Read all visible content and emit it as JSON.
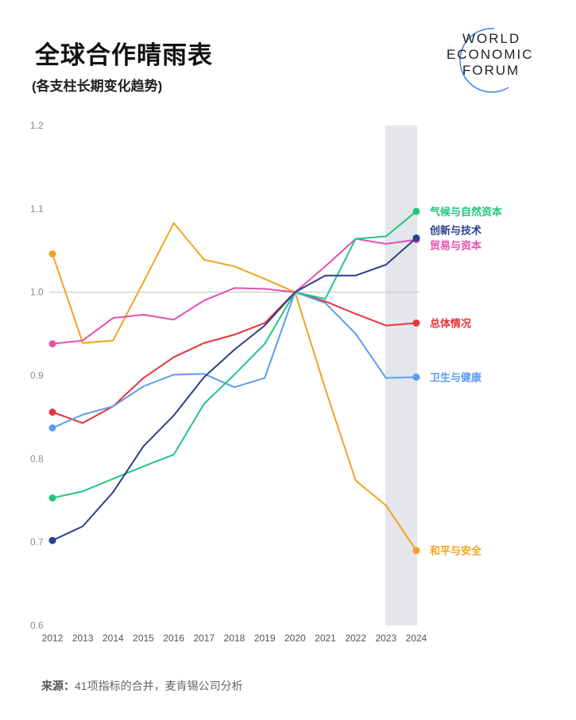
{
  "header": {
    "title": "全球合作晴雨表",
    "subtitle": "(各支柱长期变化趋势)",
    "logo_text": [
      "WORLD",
      "ECONOMIC",
      "FORUM"
    ]
  },
  "footer": {
    "source_label": "来源：",
    "source_text": "41项指标的合并，麦肯锡公司分析"
  },
  "chart_data": {
    "type": "line",
    "title": "全球合作晴雨表",
    "subtitle": "(各支柱长期变化趋势)",
    "x": [
      2012,
      2013,
      2014,
      2015,
      2016,
      2017,
      2018,
      2019,
      2020,
      2021,
      2022,
      2023,
      2024
    ],
    "ylim": [
      0.6,
      1.2
    ],
    "yticks": [
      "0.6",
      "0.7",
      "0.8",
      "0.9",
      "1.0",
      "1.1",
      "1.2"
    ],
    "reference_line": 1.0,
    "highlight_range": [
      2023,
      2024
    ],
    "grid": false,
    "legend": "end-labels",
    "series": [
      {
        "name": "和平与安全",
        "color": "#f5a21e",
        "values": [
          1.046,
          0.939,
          0.942,
          1.012,
          1.083,
          1.039,
          1.031,
          1.016,
          1.0,
          0.884,
          0.774,
          0.744,
          0.69
        ]
      },
      {
        "name": "贸易与资本",
        "color": "#e84fae",
        "values": [
          0.938,
          0.942,
          0.969,
          0.973,
          0.967,
          0.99,
          1.005,
          1.004,
          1.0,
          1.031,
          1.064,
          1.058,
          1.063
        ]
      },
      {
        "name": "总体情况",
        "color": "#e8343a",
        "values": [
          0.856,
          0.843,
          0.863,
          0.897,
          0.922,
          0.939,
          0.949,
          0.963,
          1.0,
          0.989,
          0.974,
          0.96,
          0.963
        ]
      },
      {
        "name": "卫生与健康",
        "color": "#5b9cf0",
        "values": [
          0.837,
          0.853,
          0.863,
          0.887,
          0.901,
          0.902,
          0.886,
          0.897,
          1.0,
          0.987,
          0.95,
          0.897,
          0.898
        ]
      },
      {
        "name": "气候与自然资本",
        "color": "#1fc77e",
        "values": [
          0.753,
          0.761,
          0.776,
          0.791,
          0.805,
          0.866,
          0.901,
          0.938,
          1.0,
          0.992,
          1.064,
          1.067,
          1.097
        ]
      },
      {
        "name": "创新与技术",
        "color": "#2b3f8c",
        "values": [
          0.702,
          0.719,
          0.76,
          0.815,
          0.852,
          0.898,
          0.931,
          0.96,
          1.0,
          1.02,
          1.02,
          1.033,
          1.065
        ]
      }
    ]
  }
}
